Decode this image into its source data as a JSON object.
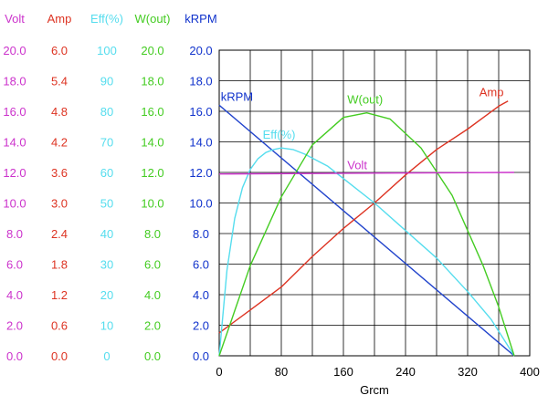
{
  "chart_data": {
    "type": "line",
    "xlabel": "Grcm",
    "x_ticks": [
      0,
      80,
      160,
      240,
      320,
      400
    ],
    "xlim": [
      0,
      400
    ],
    "grid": true,
    "axes": [
      {
        "key": "volt",
        "label": "Volt",
        "color": "#cc33cc",
        "ticks": [
          "0.0",
          "2.0",
          "4.0",
          "6.0",
          "8.0",
          "10.0",
          "12.0",
          "14.0",
          "16.0",
          "18.0",
          "20.0"
        ],
        "ylim": [
          0,
          20
        ]
      },
      {
        "key": "amp",
        "label": "Amp",
        "color": "#dd3322",
        "ticks": [
          "0.0",
          "0.6",
          "1.2",
          "1.8",
          "2.4",
          "3.0",
          "3.6",
          "4.2",
          "4.8",
          "5.4",
          "6.0"
        ],
        "ylim": [
          0,
          6
        ]
      },
      {
        "key": "eff",
        "label": "Eff(%)",
        "color": "#55ddee",
        "ticks": [
          "0",
          "10",
          "20",
          "30",
          "40",
          "50",
          "60",
          "70",
          "80",
          "90",
          "100"
        ],
        "ylim": [
          0,
          100
        ]
      },
      {
        "key": "wout",
        "label": "W(out)",
        "color": "#44cc22",
        "ticks": [
          "0.0",
          "2.0",
          "4.0",
          "6.0",
          "8.0",
          "10.0",
          "12.0",
          "14.0",
          "16.0",
          "18.0",
          "20.0"
        ],
        "ylim": [
          0,
          20
        ]
      },
      {
        "key": "krpm",
        "label": "kRPM",
        "color": "#1133cc",
        "ticks": [
          "0.0",
          "2.0",
          "4.0",
          "6.0",
          "8.0",
          "10.0",
          "12.0",
          "14.0",
          "16.0",
          "18.0",
          "20.0"
        ],
        "ylim": [
          0,
          20
        ]
      }
    ],
    "series": [
      {
        "key": "krpm",
        "name": "kRPM",
        "color": "#2244cc",
        "x": [
          0,
          380
        ],
        "y": [
          16.4,
          0
        ]
      },
      {
        "key": "amp",
        "name": "Amp",
        "color": "#dd3322",
        "x": [
          0,
          40,
          80,
          120,
          160,
          200,
          240,
          280,
          320,
          360,
          372
        ],
        "y": [
          0.45,
          0.9,
          1.35,
          1.95,
          2.5,
          3.0,
          3.55,
          4.05,
          4.45,
          4.9,
          5.0
        ]
      },
      {
        "key": "eff",
        "name": "Eff(%)",
        "color": "#55ddee",
        "x": [
          0,
          10,
          20,
          30,
          40,
          50,
          60,
          70,
          80,
          95,
          110,
          140,
          170,
          200,
          240,
          280,
          320,
          350,
          365,
          375,
          380
        ],
        "y": [
          0,
          28,
          45,
          55,
          61,
          64.5,
          66.5,
          67.5,
          68,
          67.5,
          66,
          62,
          56,
          50,
          41,
          32,
          21,
          12,
          6,
          2,
          0
        ]
      },
      {
        "key": "wout",
        "name": "W(out)",
        "color": "#44cc22",
        "x": [
          0,
          40,
          80,
          120,
          160,
          190,
          220,
          260,
          300,
          340,
          360,
          380
        ],
        "y": [
          0,
          5.9,
          10.4,
          13.8,
          15.6,
          15.9,
          15.5,
          13.6,
          10.5,
          5.9,
          3.2,
          0
        ]
      },
      {
        "key": "volt",
        "name": "Volt",
        "color": "#cc33cc",
        "x": [
          0,
          380
        ],
        "y": [
          11.9,
          12.0
        ]
      }
    ],
    "series_labels": [
      {
        "key": "krpm",
        "text": "kRPM",
        "color": "#1133cc",
        "x": 2,
        "y": 16.7
      },
      {
        "key": "wout",
        "text": "W(out)",
        "color": "#44cc22",
        "x": 165,
        "y": 16.5
      },
      {
        "key": "amp",
        "text": "Amp",
        "color": "#dd3322",
        "x": 335,
        "y": 5.1
      },
      {
        "key": "eff",
        "text": "Eff(%)",
        "color": "#55ddee",
        "x": 56,
        "y": 71
      },
      {
        "key": "volt",
        "text": "Volt",
        "color": "#cc33cc",
        "x": 165,
        "y": 12.2
      }
    ]
  }
}
